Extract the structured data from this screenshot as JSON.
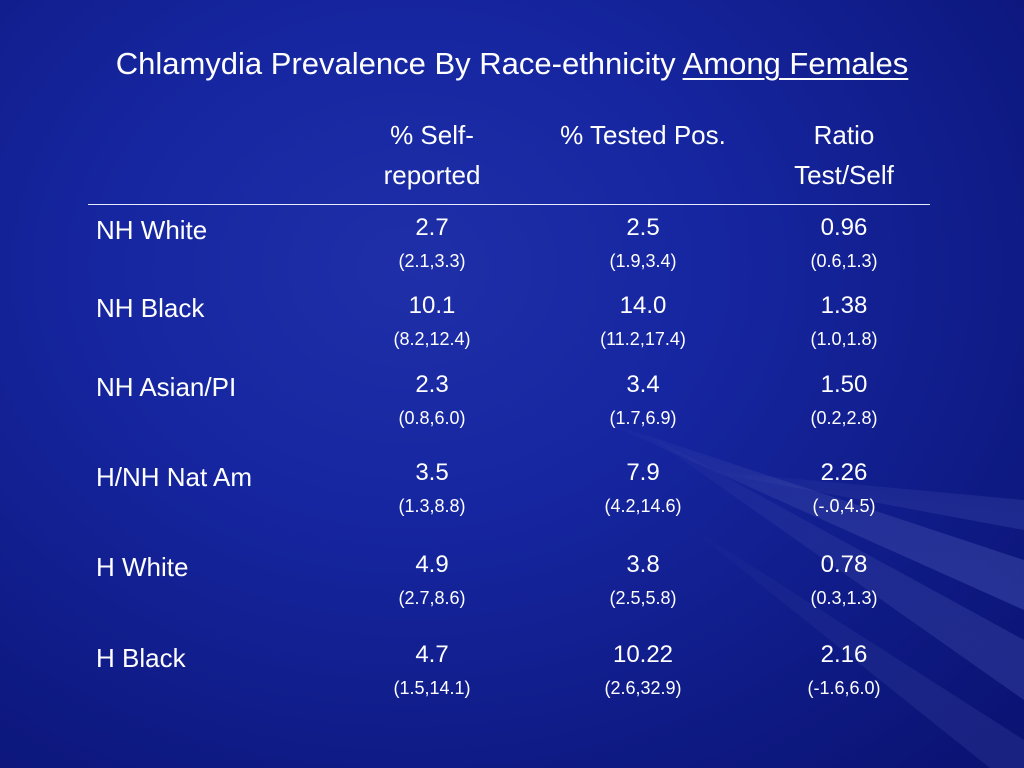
{
  "title": {
    "main": "Chlamydia Prevalence By Race-ethnicity",
    "emphasis": "Among Females"
  },
  "columns": [
    {
      "line1": "% Self-",
      "line2": "reported"
    },
    {
      "line1": "% Tested Pos.",
      "line2": ""
    },
    {
      "line1": "Ratio",
      "line2": "Test/Self"
    }
  ],
  "rows": [
    {
      "label": "NH White",
      "cells": [
        {
          "value": "2.7",
          "ci": "(2.1,3.3)"
        },
        {
          "value": "2.5",
          "ci": "(1.9,3.4)"
        },
        {
          "value": "0.96",
          "ci": "(0.6,1.3)"
        }
      ]
    },
    {
      "label": "NH Black",
      "cells": [
        {
          "value": "10.1",
          "ci": "(8.2,12.4)"
        },
        {
          "value": "14.0",
          "ci": "(11.2,17.4)"
        },
        {
          "value": "1.38",
          "ci": "(1.0,1.8)"
        }
      ]
    },
    {
      "label": "NH Asian/PI",
      "cells": [
        {
          "value": "2.3",
          "ci": "(0.8,6.0)"
        },
        {
          "value": "3.4",
          "ci": "(1.7,6.9)"
        },
        {
          "value": "1.50",
          "ci": "(0.2,2.8)"
        }
      ]
    },
    {
      "label": "H/NH Nat Am",
      "cells": [
        {
          "value": "3.5",
          "ci": "(1.3,8.8)"
        },
        {
          "value": "7.9",
          "ci": "(4.2,14.6)"
        },
        {
          "value": "2.26",
          "ci": "(-.0,4.5)"
        }
      ]
    },
    {
      "label": "H White",
      "cells": [
        {
          "value": "4.9",
          "ci": "(2.7,8.6)"
        },
        {
          "value": "3.8",
          "ci": "(2.5,5.8)"
        },
        {
          "value": "0.78",
          "ci": "(0.3,1.3)"
        }
      ]
    },
    {
      "label": "H Black",
      "cells": [
        {
          "value": "4.7",
          "ci": "(1.5,14.1)"
        },
        {
          "value": "10.22",
          "ci": "(2.6,32.9)"
        },
        {
          "value": "2.16",
          "ci": "(-1.6,6.0)"
        }
      ]
    }
  ],
  "colors": {
    "background": "#1626a0",
    "background_dark": "#0a1270",
    "text": "#ffffff"
  }
}
